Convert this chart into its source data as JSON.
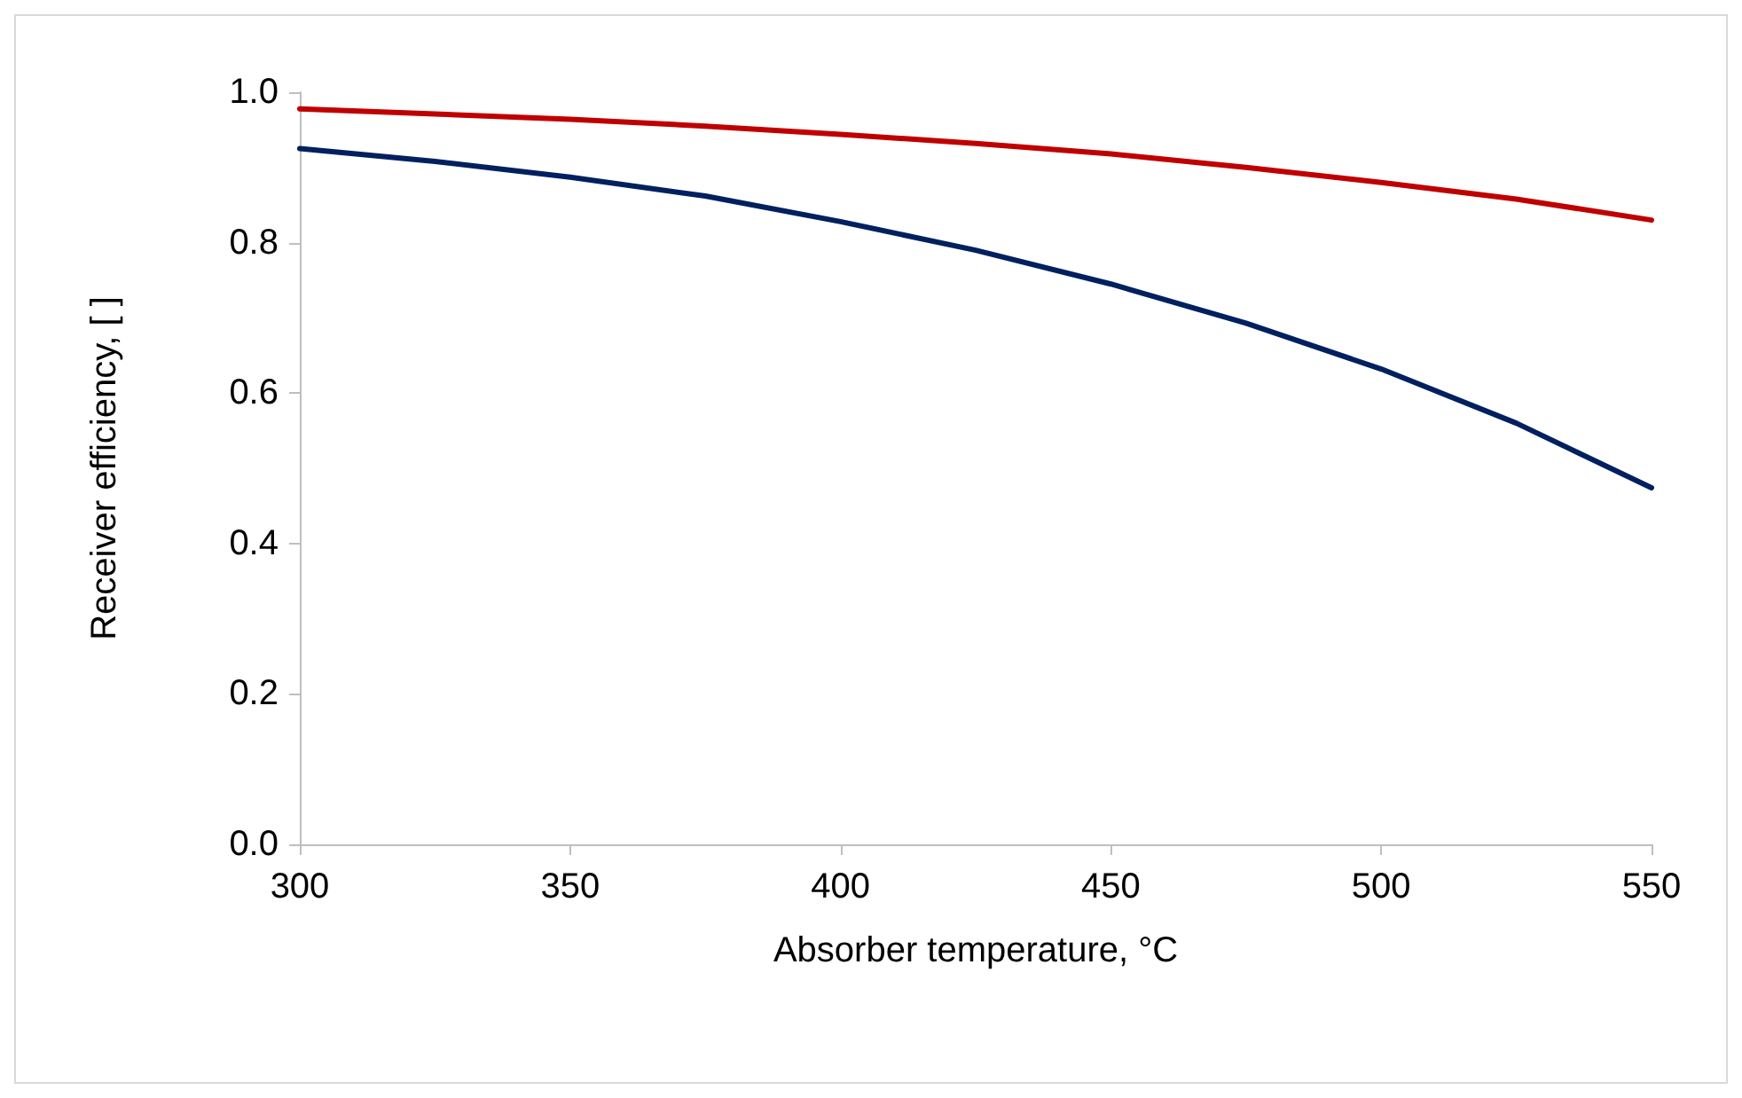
{
  "chart_data": {
    "type": "line",
    "xlabel": "Absorber temperature, °C",
    "ylabel": "Receiver efficiency, [ ]",
    "x": [
      300,
      325,
      350,
      375,
      400,
      425,
      450,
      475,
      500,
      525,
      550
    ],
    "series": [
      {
        "color": "#c00000",
        "values": [
          0.978,
          0.971,
          0.964,
          0.955,
          0.944,
          0.932,
          0.918,
          0.9,
          0.88,
          0.858,
          0.83
        ]
      },
      {
        "color": "#002060",
        "values": [
          0.925,
          0.908,
          0.887,
          0.862,
          0.828,
          0.79,
          0.745,
          0.693,
          0.632,
          0.56,
          0.474
        ]
      }
    ],
    "xlim": [
      300,
      550
    ],
    "xticks": [
      300,
      350,
      400,
      450,
      500,
      550
    ],
    "ylim": [
      0,
      1
    ],
    "yticks": [
      {
        "value": 0,
        "label": "0.0"
      },
      0.2,
      0.4,
      0.6,
      0.8,
      {
        "value": 1,
        "label": "1.0"
      }
    ],
    "grid": false,
    "marker": "none",
    "line_style": "solid"
  }
}
